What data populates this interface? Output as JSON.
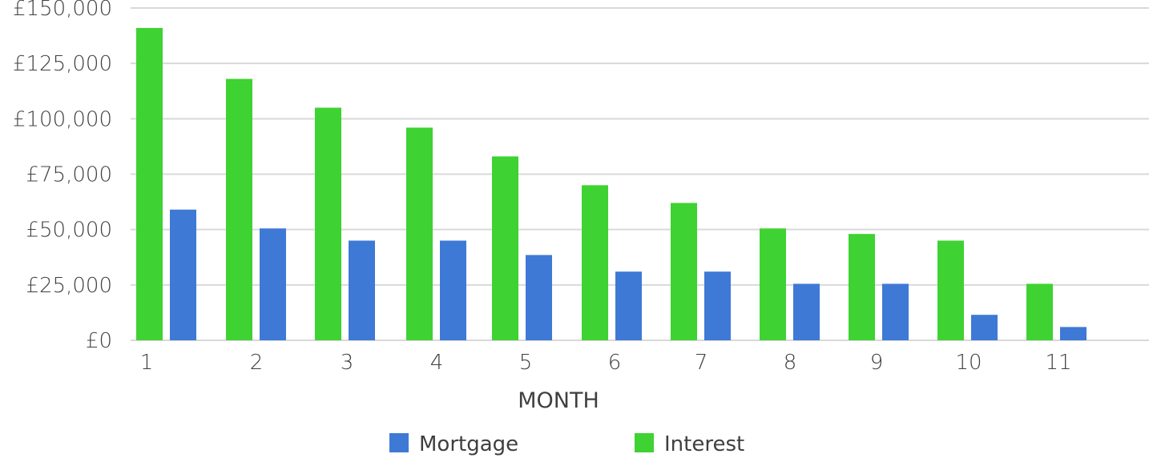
{
  "chart_data": {
    "type": "bar",
    "categories": [
      "1",
      "2",
      "3",
      "4",
      "5",
      "6",
      "7",
      "8",
      "9",
      "10",
      "11"
    ],
    "series": [
      {
        "name": "Interest",
        "color": "#3ed232",
        "values": [
          141000,
          118000,
          105000,
          96000,
          83000,
          70000,
          62000,
          50500,
          48000,
          45000,
          25500
        ]
      },
      {
        "name": "Mortgage",
        "color": "#3e79d6",
        "values": [
          59000,
          50500,
          45000,
          45000,
          38500,
          31000,
          31000,
          25500,
          25500,
          11500,
          6000
        ]
      }
    ],
    "xlabel": "MONTH",
    "ylabel": "",
    "ylim": [
      0,
      150000
    ],
    "yticks": [
      0,
      25000,
      50000,
      75000,
      100000,
      125000,
      150000
    ],
    "ytick_labels": [
      "£0",
      "£25,000",
      "£50,000",
      "£75,000",
      "£100,000",
      "£125,000",
      "£150,000"
    ],
    "grid": true,
    "legend": {
      "position": "bottom",
      "items": [
        {
          "label": "Mortgage",
          "color": "#3e79d6"
        },
        {
          "label": "Interest",
          "color": "#3ed232"
        }
      ]
    }
  }
}
